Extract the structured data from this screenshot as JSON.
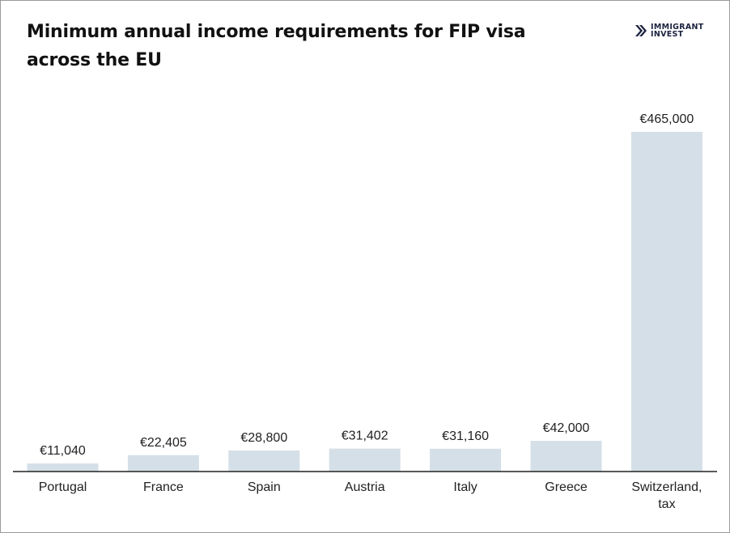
{
  "header": {
    "title_line1": "Minimum annual income requirements for FIP visa",
    "title_line2": "across the EU"
  },
  "logo": {
    "line1": "IMMIGRANT",
    "line2": "INVEST",
    "icon": "immigrant-invest-chevron-logo"
  },
  "colors": {
    "bar": "#d5dfe7",
    "axis": "#222222",
    "text": "#222222",
    "brand": "#1c2340"
  },
  "chart_data": {
    "type": "bar",
    "title": "Minimum annual income requirements for FIP visa across the EU",
    "categories": [
      "Portugal",
      "France",
      "Spain",
      "Austria",
      "Italy",
      "Greece",
      "Switzerland, tax"
    ],
    "category_lines": [
      [
        "Portugal"
      ],
      [
        "France"
      ],
      [
        "Spain"
      ],
      [
        "Austria"
      ],
      [
        "Italy"
      ],
      [
        "Greece"
      ],
      [
        "Switzerland,",
        "tax"
      ]
    ],
    "values": [
      11040,
      22405,
      28800,
      31402,
      31160,
      42000,
      465000
    ],
    "value_labels": [
      "€11,040",
      "€22,405",
      "€28,800",
      "€31,402",
      "€31,160",
      "€42,000",
      "€465,000"
    ],
    "xlabel": "",
    "ylabel": "",
    "ylim": [
      0,
      465000
    ],
    "grid": false,
    "legend": "none"
  }
}
